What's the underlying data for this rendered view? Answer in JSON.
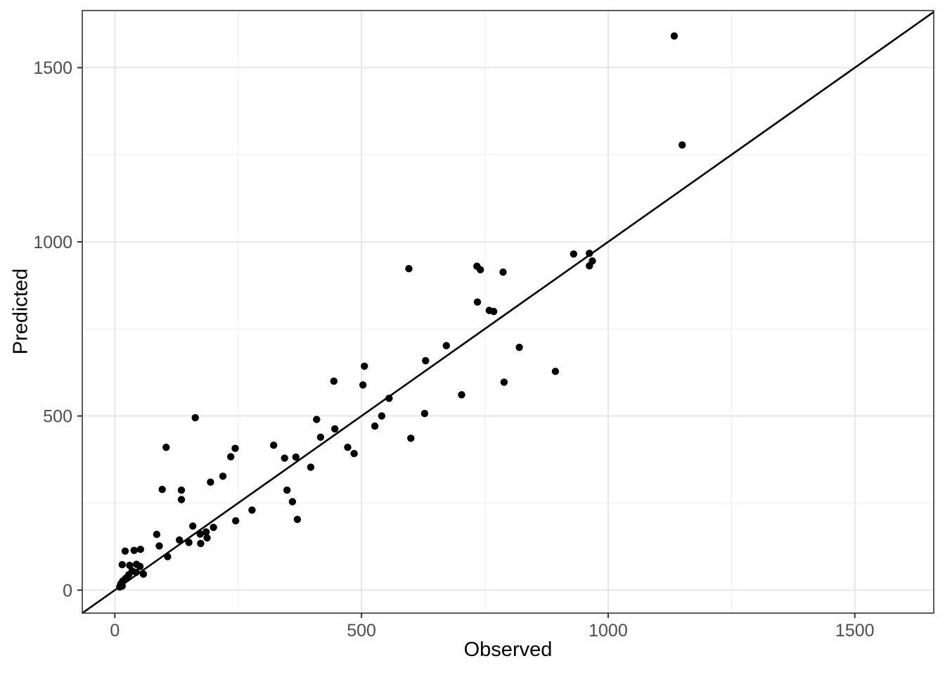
{
  "chart_data": {
    "type": "scatter",
    "title": "",
    "xlabel": "Observed",
    "ylabel": "Predicted",
    "xlim": [
      -66,
      1660
    ],
    "ylim": [
      -66,
      1664
    ],
    "x_major_ticks": [
      0,
      500,
      1000,
      1500
    ],
    "x_minor_ticks": [
      250,
      750,
      1250
    ],
    "y_major_ticks": [
      0,
      500,
      1000,
      1500
    ],
    "y_minor_ticks": [
      250,
      750,
      1250
    ],
    "x_tick_labels": [
      "0",
      "500",
      "1000",
      "1500"
    ],
    "y_tick_labels": [
      "0",
      "500",
      "1000",
      "1500"
    ],
    "grid": "major-and-minor",
    "legend_position": "none",
    "reference_line": {
      "type": "identity",
      "slope": 1,
      "intercept": 0
    },
    "point_radius": 5.2,
    "colors": {
      "point": "#000000",
      "reference_line": "#000000",
      "panel_border": "#333333",
      "grid_major": "#e3e3e3",
      "grid_minor": "#efefef",
      "tick_mark": "#333333",
      "tick_label": "#4d4d4d",
      "axis_title": "#000000",
      "panel_background": "#ffffff"
    },
    "points": [
      [
        10,
        9
      ],
      [
        15,
        12
      ],
      [
        12,
        18
      ],
      [
        16,
        26
      ],
      [
        22,
        34
      ],
      [
        28,
        44
      ],
      [
        35,
        55
      ],
      [
        43,
        51
      ],
      [
        58,
        46
      ],
      [
        15,
        73
      ],
      [
        30,
        71
      ],
      [
        44,
        74
      ],
      [
        51,
        68
      ],
      [
        21,
        112
      ],
      [
        39,
        114
      ],
      [
        52,
        117
      ],
      [
        90,
        127
      ],
      [
        107,
        96
      ],
      [
        85,
        160
      ],
      [
        131,
        144
      ],
      [
        150,
        137
      ],
      [
        158,
        184
      ],
      [
        173,
        161
      ],
      [
        174,
        134
      ],
      [
        185,
        167
      ],
      [
        187,
        150
      ],
      [
        200,
        180
      ],
      [
        96,
        289
      ],
      [
        135,
        287
      ],
      [
        135,
        260
      ],
      [
        104,
        410
      ],
      [
        163,
        495
      ],
      [
        244,
        407
      ],
      [
        235,
        383
      ],
      [
        219,
        327
      ],
      [
        194,
        310
      ],
      [
        278,
        230
      ],
      [
        245,
        199
      ],
      [
        322,
        416
      ],
      [
        344,
        379
      ],
      [
        367,
        382
      ],
      [
        397,
        353
      ],
      [
        409,
        490
      ],
      [
        417,
        439
      ],
      [
        446,
        463
      ],
      [
        472,
        410
      ],
      [
        485,
        392
      ],
      [
        349,
        287
      ],
      [
        360,
        254
      ],
      [
        370,
        203
      ],
      [
        506,
        643
      ],
      [
        444,
        600
      ],
      [
        503,
        589
      ],
      [
        556,
        551
      ],
      [
        541,
        500
      ],
      [
        527,
        471
      ],
      [
        600,
        436
      ],
      [
        596,
        923
      ],
      [
        734,
        930
      ],
      [
        741,
        920
      ],
      [
        787,
        913
      ],
      [
        735,
        827
      ],
      [
        759,
        803
      ],
      [
        768,
        800
      ],
      [
        672,
        702
      ],
      [
        630,
        659
      ],
      [
        820,
        697
      ],
      [
        893,
        628
      ],
      [
        789,
        597
      ],
      [
        703,
        561
      ],
      [
        628,
        507
      ],
      [
        930,
        965
      ],
      [
        962,
        967
      ],
      [
        968,
        945
      ],
      [
        962,
        931
      ],
      [
        1134,
        1591
      ],
      [
        1150,
        1278
      ]
    ]
  }
}
